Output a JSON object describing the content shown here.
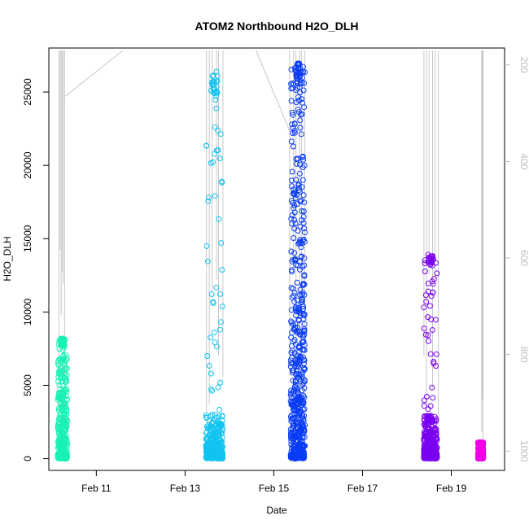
{
  "chart_data": {
    "type": "scatter",
    "title": "ATOM2 Northbound H2O_DLH",
    "xlabel": "Date",
    "ylabel": "H2O_DLH",
    "x_ticks": [
      {
        "day": 11,
        "label": "Feb 11"
      },
      {
        "day": 13,
        "label": "Feb 13"
      },
      {
        "day": 15,
        "label": "Feb 15"
      },
      {
        "day": 17,
        "label": "Feb 17"
      },
      {
        "day": 19,
        "label": "Feb 19"
      }
    ],
    "xlim": [
      9.93,
      20.2
    ],
    "ylim": [
      -800,
      28000
    ],
    "y_ticks": [
      0,
      5000,
      10000,
      15000,
      20000,
      25000
    ],
    "right_axis": {
      "label": "",
      "lim": [
        1040,
        165
      ],
      "ticks": [
        200,
        400,
        600,
        800,
        1000
      ],
      "color": "#bdbdbd"
    },
    "series": [
      {
        "color": "#19f0b4",
        "x_range": [
          10.13,
          10.35
        ],
        "y_max": 8200,
        "y_dense_max": 6200
      },
      {
        "color": "#12c3f0",
        "x_range": [
          13.47,
          13.85
        ],
        "y_max": 26500,
        "y_dense_max": 3000
      },
      {
        "color": "#0a3cf5",
        "x_range": [
          15.38,
          15.7
        ],
        "y_max": 27000,
        "y_dense_max": 17000
      },
      {
        "color": "#7a00f0",
        "x_range": [
          18.38,
          18.68
        ],
        "y_max": 14000,
        "y_dense_max": 3000
      },
      {
        "color": "#f000e6",
        "x_range": [
          19.6,
          19.72
        ],
        "y_max": 1100,
        "y_dense_max": 1100
      }
    ],
    "pressure_trace": {
      "color": "#c8c8c8",
      "segments": [
        {
          "x_range": [
            10.15,
            10.3
          ],
          "p_top": 170,
          "p_bottom": 1000
        },
        {
          "x_range": [
            13.45,
            13.9
          ],
          "p_top": 170,
          "p_bottom": 1000
        },
        {
          "x_range": [
            15.35,
            15.75
          ],
          "p_top": 170,
          "p_bottom": 1000
        },
        {
          "x_range": [
            18.35,
            18.75
          ],
          "p_top": 170,
          "p_bottom": 1000
        },
        {
          "x_range": [
            19.68,
            19.72
          ],
          "p_top": 170,
          "p_bottom": 1000
        }
      ],
      "transits": [
        {
          "from": [
            10.3,
            265
          ],
          "to": [
            11.6,
            170
          ]
        },
        {
          "from": [
            14.6,
            170
          ],
          "to": [
            15.35,
            335
          ]
        }
      ]
    },
    "grid": false,
    "legend": "none"
  }
}
